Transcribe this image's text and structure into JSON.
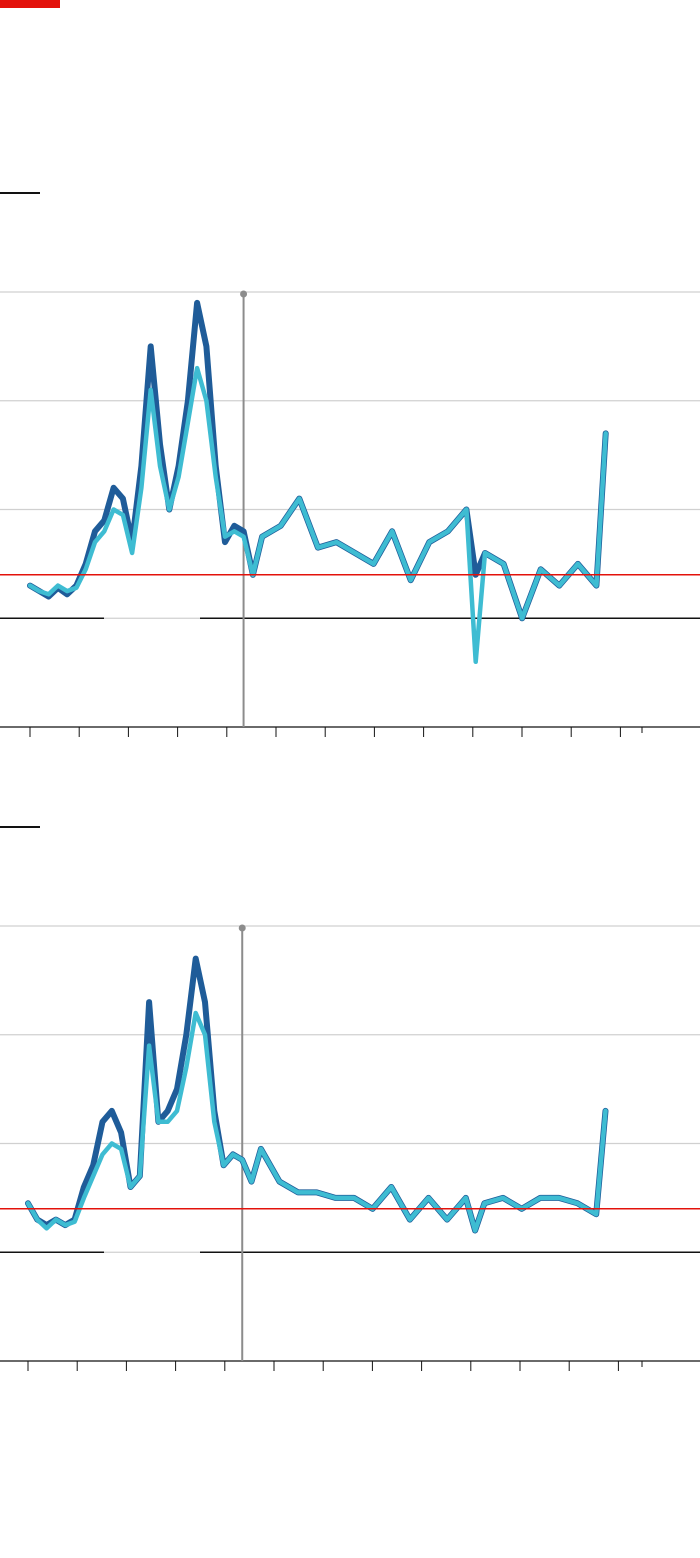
{
  "colors": {
    "brand": "#e3120b",
    "series_dark": "#1f5c99",
    "series_light": "#3ebcd2",
    "reference_line": "#e3120b",
    "gridline": "#d0d0d0",
    "baseline": "#121212",
    "event_marker": "#8c8c8c"
  },
  "chart_data": [
    {
      "type": "line",
      "title": "",
      "xlabel": "",
      "ylabel": "",
      "x_ticks": 13,
      "ylim": [
        0,
        4
      ],
      "gridlines": [
        1,
        2,
        3,
        4
      ],
      "grid": true,
      "reference_value": 1.4,
      "baseline_value": 1.0,
      "event_marker_x": 4.6,
      "xlim": [
        0,
        14
      ],
      "series": [
        {
          "color_key": "series_dark",
          "x": [
            0,
            0.2,
            0.4,
            0.6,
            0.8,
            1.0,
            1.2,
            1.4,
            1.6,
            1.8,
            2.0,
            2.2,
            2.4,
            2.6,
            2.8,
            3.0,
            3.2,
            3.4,
            3.6,
            3.8,
            4.0,
            4.2,
            4.4,
            4.6,
            4.8,
            5.0,
            5.4,
            5.8,
            6.2,
            6.6,
            7.0,
            7.4,
            7.8,
            8.2,
            8.6,
            9.0,
            9.4,
            9.6,
            9.8,
            10.2,
            10.6,
            11.0,
            11.4,
            11.8,
            12.2,
            12.4
          ],
          "values": [
            1.3,
            1.25,
            1.2,
            1.28,
            1.22,
            1.3,
            1.5,
            1.8,
            1.9,
            2.2,
            2.1,
            1.7,
            2.4,
            3.5,
            2.6,
            2.0,
            2.4,
            3.0,
            3.9,
            3.5,
            2.4,
            1.7,
            1.85,
            1.8,
            1.4,
            1.75,
            1.85,
            2.1,
            1.65,
            1.7,
            1.6,
            1.5,
            1.8,
            1.35,
            1.7,
            1.8,
            2.0,
            1.4,
            1.6,
            1.5,
            1.0,
            1.45,
            1.3,
            1.5,
            1.3,
            2.7
          ]
        },
        {
          "color_key": "series_light",
          "x": [
            0,
            0.2,
            0.4,
            0.6,
            0.8,
            1.0,
            1.2,
            1.4,
            1.6,
            1.8,
            2.0,
            2.2,
            2.4,
            2.6,
            2.8,
            3.0,
            3.2,
            3.4,
            3.6,
            3.8,
            4.0,
            4.2,
            4.4,
            4.6,
            4.8,
            5.0,
            5.4,
            5.8,
            6.2,
            6.6,
            7.0,
            7.4,
            7.8,
            8.2,
            8.6,
            9.0,
            9.4,
            9.6,
            9.8,
            10.2,
            10.6,
            11.0,
            11.4,
            11.8,
            12.2,
            12.4
          ],
          "values": [
            1.3,
            1.25,
            1.22,
            1.3,
            1.25,
            1.28,
            1.45,
            1.7,
            1.8,
            2.0,
            1.95,
            1.6,
            2.2,
            3.1,
            2.4,
            2.0,
            2.3,
            2.8,
            3.3,
            3.0,
            2.3,
            1.75,
            1.8,
            1.75,
            1.4,
            1.75,
            1.85,
            2.1,
            1.65,
            1.7,
            1.6,
            1.5,
            1.8,
            1.35,
            1.7,
            1.8,
            2.0,
            0.6,
            1.6,
            1.5,
            1.0,
            1.45,
            1.3,
            1.5,
            1.3,
            2.7
          ]
        }
      ]
    },
    {
      "type": "line",
      "title": "",
      "xlabel": "",
      "ylabel": "",
      "x_ticks": 13,
      "ylim": [
        0,
        4
      ],
      "gridlines": [
        1,
        2,
        3,
        4
      ],
      "grid": true,
      "reference_value": 1.4,
      "baseline_value": 1.0,
      "event_marker_x": 4.6,
      "xlim": [
        0,
        14
      ],
      "series": [
        {
          "color_key": "series_dark",
          "x": [
            0,
            0.2,
            0.4,
            0.6,
            0.8,
            1.0,
            1.2,
            1.4,
            1.6,
            1.8,
            2.0,
            2.2,
            2.4,
            2.6,
            2.8,
            3.0,
            3.2,
            3.4,
            3.6,
            3.8,
            4.0,
            4.2,
            4.4,
            4.6,
            4.8,
            5.0,
            5.4,
            5.8,
            6.2,
            6.6,
            7.0,
            7.4,
            7.8,
            8.2,
            8.6,
            9.0,
            9.4,
            9.6,
            9.8,
            10.2,
            10.6,
            11.0,
            11.4,
            11.8,
            12.2,
            12.4
          ],
          "values": [
            1.45,
            1.3,
            1.25,
            1.3,
            1.25,
            1.3,
            1.6,
            1.8,
            2.2,
            2.3,
            2.1,
            1.6,
            1.7,
            3.3,
            2.2,
            2.3,
            2.5,
            3.0,
            3.7,
            3.3,
            2.3,
            1.8,
            1.9,
            1.85,
            1.65,
            1.95,
            1.65,
            1.55,
            1.55,
            1.5,
            1.5,
            1.4,
            1.6,
            1.3,
            1.5,
            1.3,
            1.5,
            1.2,
            1.45,
            1.5,
            1.4,
            1.5,
            1.5,
            1.45,
            1.35,
            2.3
          ]
        },
        {
          "color_key": "series_light",
          "x": [
            0,
            0.2,
            0.4,
            0.6,
            0.8,
            1.0,
            1.2,
            1.4,
            1.6,
            1.8,
            2.0,
            2.2,
            2.4,
            2.6,
            2.8,
            3.0,
            3.2,
            3.4,
            3.6,
            3.8,
            4.0,
            4.2,
            4.4,
            4.6,
            4.8,
            5.0,
            5.4,
            5.8,
            6.2,
            6.6,
            7.0,
            7.4,
            7.8,
            8.2,
            8.6,
            9.0,
            9.4,
            9.6,
            9.8,
            10.2,
            10.6,
            11.0,
            11.4,
            11.8,
            12.2,
            12.4
          ],
          "values": [
            1.45,
            1.3,
            1.22,
            1.3,
            1.25,
            1.28,
            1.5,
            1.7,
            1.9,
            2.0,
            1.95,
            1.6,
            1.7,
            2.9,
            2.2,
            2.2,
            2.3,
            2.7,
            3.2,
            3.0,
            2.2,
            1.8,
            1.9,
            1.85,
            1.65,
            1.95,
            1.65,
            1.55,
            1.55,
            1.5,
            1.5,
            1.4,
            1.6,
            1.3,
            1.5,
            1.3,
            1.5,
            1.2,
            1.45,
            1.5,
            1.4,
            1.5,
            1.5,
            1.45,
            1.35,
            2.3
          ]
        }
      ]
    }
  ]
}
